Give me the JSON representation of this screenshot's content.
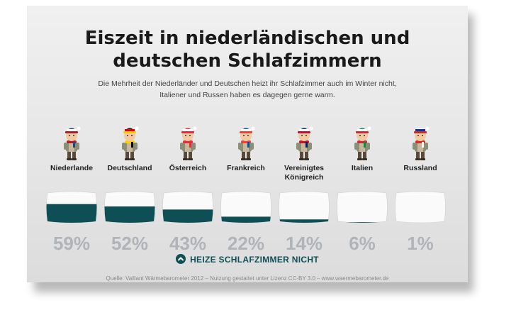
{
  "title_line1": "Eiszeit in niederländischen und",
  "title_line2": "deutschen Schlafzimmern",
  "subtitle_line1": "Die Mehrheit der Niederländer und Deutschen heizt ihr Schlafzimmer auch im Winter nicht,",
  "subtitle_line2": "Italiener und Russen haben es dagegen gerne warm.",
  "legend_label": "HEIZE SCHLAFZIMMER NICHT",
  "source": "Quelle: Vaillant Wärmebarometer 2012 – Nutzung gestattet unter Lizenz CC-BY 3.0 – www.waermebarometer.de",
  "colors": {
    "fill": "#0e4f55",
    "percent_text": "#b0b4b8",
    "pillow": "#fafafa"
  },
  "chart_data": {
    "type": "bar",
    "categories": [
      "Niederlande",
      "Deutschland",
      "Österreich",
      "Frankreich",
      "Vereinigtes Königreich",
      "Italien",
      "Russland"
    ],
    "category_lines": [
      [
        "Niederlande"
      ],
      [
        "Deutschland"
      ],
      [
        "Österreich"
      ],
      [
        "Frankreich"
      ],
      [
        "Vereinigtes",
        "Königreich"
      ],
      [
        "Italien"
      ],
      [
        "Russland"
      ]
    ],
    "flag_colors": [
      [
        "#21468b",
        "#ffffff",
        "#ae1c28"
      ],
      [
        "#000000",
        "#dd0000",
        "#ffce00"
      ],
      [
        "#ed2939",
        "#ffffff",
        "#ed2939"
      ],
      [
        "#0055a4",
        "#ffffff",
        "#ef4135"
      ],
      [
        "#012169",
        "#ffffff",
        "#c8102e"
      ],
      [
        "#009246",
        "#ffffff",
        "#ce2b37"
      ],
      [
        "#ffffff",
        "#0039a6",
        "#d52b1e"
      ]
    ],
    "values": [
      59,
      52,
      43,
      22,
      14,
      6,
      1
    ],
    "labels": [
      "59%",
      "52%",
      "43%",
      "22%",
      "14%",
      "6%",
      "1%"
    ],
    "ylim": [
      0,
      100
    ],
    "series": [
      {
        "name": "HEIZE SCHLAFZIMMER NICHT",
        "values": [
          59,
          52,
          43,
          22,
          14,
          6,
          1
        ]
      }
    ]
  }
}
